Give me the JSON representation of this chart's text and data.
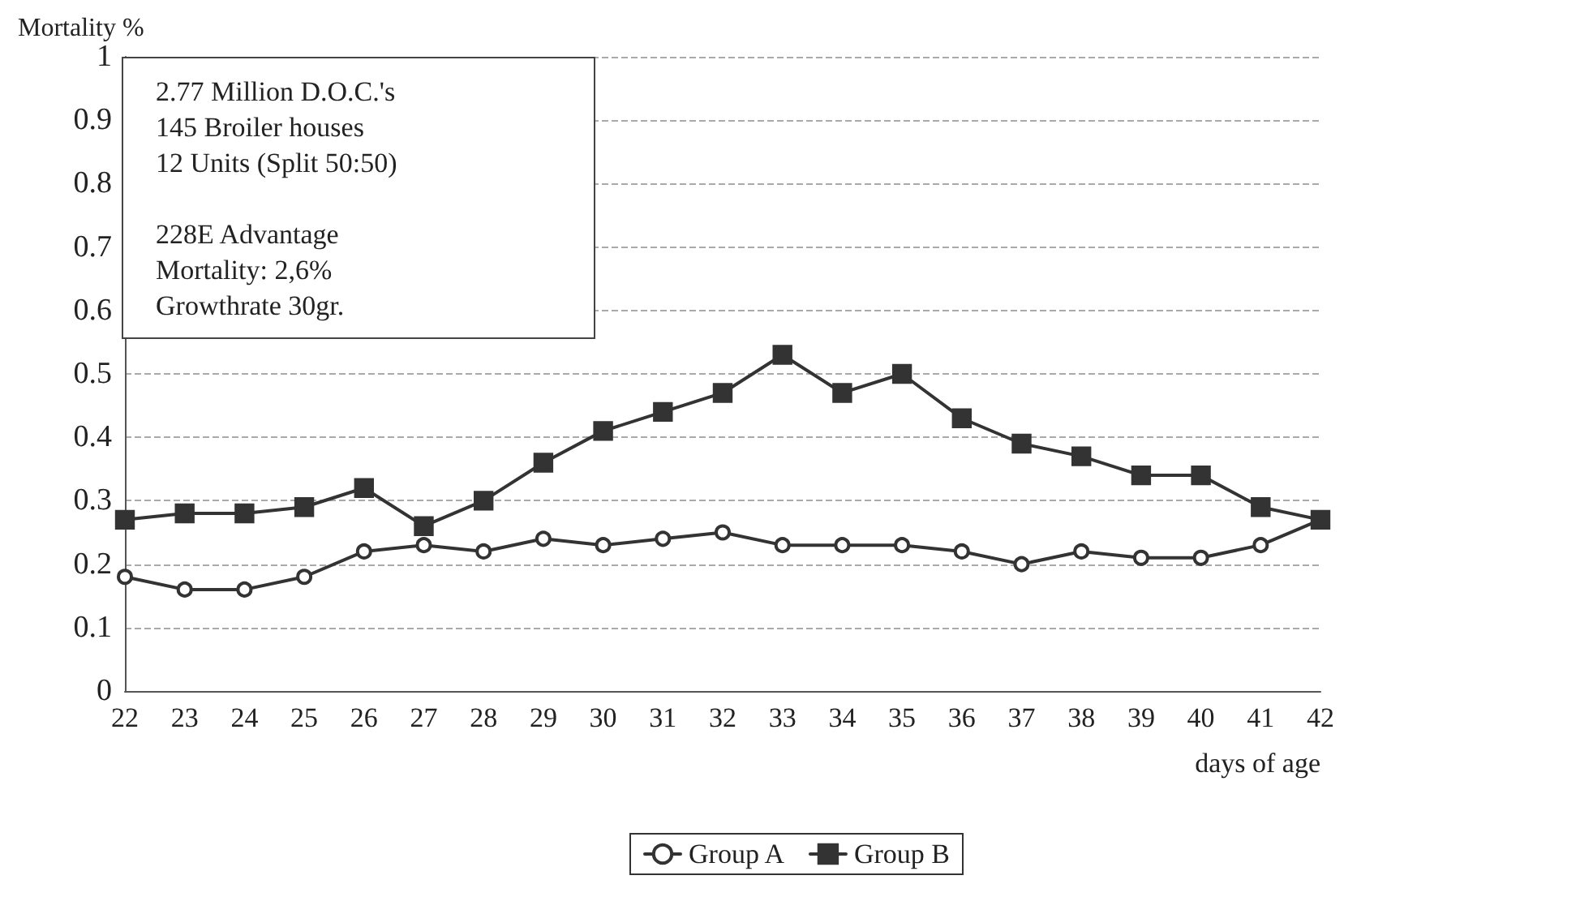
{
  "chart_data": {
    "type": "line",
    "ylabel": "Mortality %",
    "xlabel": "days of age",
    "categories": [
      "22",
      "23",
      "24",
      "25",
      "26",
      "27",
      "28",
      "29",
      "30",
      "31",
      "32",
      "33",
      "34",
      "35",
      "36",
      "37",
      "38",
      "39",
      "40",
      "41",
      "42"
    ],
    "series": [
      {
        "name": "Group A",
        "color": "#333333",
        "marker": "circle",
        "values": [
          0.18,
          0.16,
          0.16,
          0.18,
          0.22,
          0.23,
          0.22,
          0.24,
          0.23,
          0.24,
          0.25,
          0.23,
          0.23,
          0.23,
          0.22,
          0.2,
          0.22,
          0.21,
          0.21,
          0.23,
          0.27
        ]
      },
      {
        "name": "Group B",
        "color": "#333333",
        "marker": "square",
        "values": [
          0.27,
          0.28,
          0.28,
          0.29,
          0.32,
          0.26,
          0.3,
          0.36,
          0.41,
          0.44,
          0.47,
          0.53,
          0.47,
          0.5,
          0.43,
          0.39,
          0.37,
          0.34,
          0.34,
          0.29,
          0.27
        ]
      }
    ],
    "ylim": [
      0,
      1
    ],
    "yticks": [
      0,
      0.1,
      0.2,
      0.3,
      0.4,
      0.5,
      0.6,
      0.7,
      0.8,
      0.9,
      1
    ],
    "grid": "y",
    "legend": "bottom",
    "line_style": "solid",
    "annotations": [
      "2.77 Million D.O.C.'s\n145 Broiler houses\n12 Units (Split 50:50)",
      "228E Advantage\nMortality: 2,6%\nGrowthrate 30gr."
    ]
  }
}
